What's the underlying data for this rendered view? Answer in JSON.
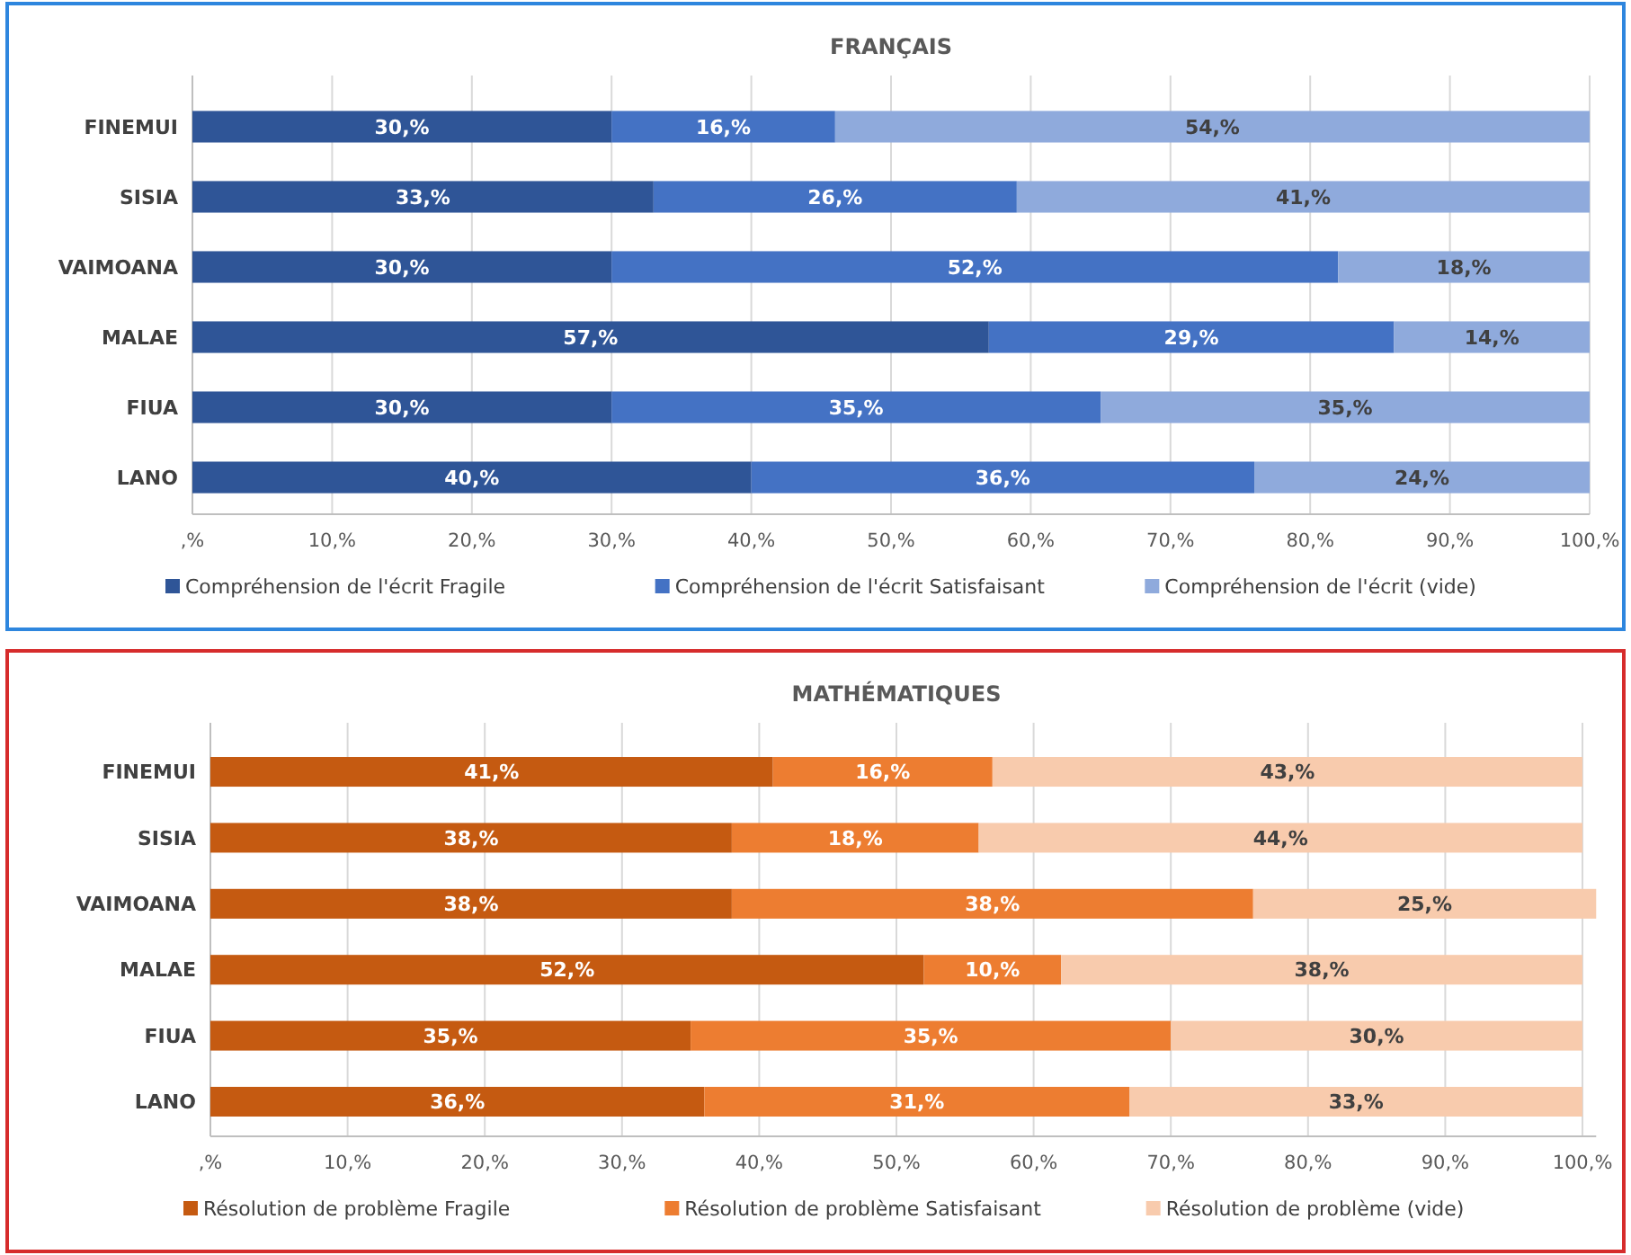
{
  "chart_data": [
    {
      "type": "bar",
      "orientation": "horizontal",
      "stacked": true,
      "title": "FRANÇAIS",
      "categories": [
        "FINEMUI",
        "SISIA",
        "VAIMOANA",
        "MALAE",
        "FIUA",
        "LANO"
      ],
      "series": [
        {
          "name": "Compréhension de l'écrit Fragile",
          "color": "#2f5597",
          "values": [
            30,
            33,
            30,
            57,
            30,
            40
          ],
          "value_labels": [
            "30,%",
            "33,%",
            "30,%",
            "57,%",
            "30,%",
            "40,%"
          ]
        },
        {
          "name": "Compréhension de l'écrit Satisfaisant",
          "color": "#4472c4",
          "values": [
            16,
            26,
            52,
            29,
            35,
            36
          ],
          "value_labels": [
            "16,%",
            "26,%",
            "52,%",
            "29,%",
            "35,%",
            "36,%"
          ]
        },
        {
          "name": "Compréhension de l'écrit (vide)",
          "color": "#8faadc",
          "values": [
            54,
            41,
            18,
            14,
            35,
            24
          ],
          "value_labels": [
            "54,%",
            "41,%",
            "18,%",
            "14,%",
            "35,%",
            "24,%"
          ]
        }
      ],
      "xlim": [
        0,
        100
      ],
      "xticks": [
        {
          "value": 0,
          "label": ",%"
        },
        {
          "value": 10,
          "label": "10,%"
        },
        {
          "value": 20,
          "label": "20,%"
        },
        {
          "value": 30,
          "label": "30,%"
        },
        {
          "value": 40,
          "label": "40,%"
        },
        {
          "value": 50,
          "label": "50,%"
        },
        {
          "value": 60,
          "label": "60,%"
        },
        {
          "value": 70,
          "label": "70,%"
        },
        {
          "value": 80,
          "label": "80,%"
        },
        {
          "value": 90,
          "label": "90,%"
        },
        {
          "value": 100,
          "label": "100,%"
        }
      ],
      "grid": "x",
      "legend": "bottom"
    },
    {
      "type": "bar",
      "orientation": "horizontal",
      "stacked": true,
      "title": "MATHÉMATIQUES",
      "categories": [
        "FINEMUI",
        "SISIA",
        "VAIMOANA",
        "MALAE",
        "FIUA",
        "LANO"
      ],
      "series": [
        {
          "name": "Résolution de problème Fragile",
          "color": "#c55a11",
          "values": [
            41,
            38,
            38,
            52,
            35,
            36
          ],
          "value_labels": [
            "41,%",
            "38,%",
            "38,%",
            "52,%",
            "35,%",
            "36,%"
          ]
        },
        {
          "name": "Résolution de problème Satisfaisant",
          "color": "#ed7d31",
          "values": [
            16,
            18,
            38,
            10,
            35,
            31
          ],
          "value_labels": [
            "16,%",
            "18,%",
            "38,%",
            "10,%",
            "35,%",
            "31,%"
          ]
        },
        {
          "name": "Résolution de problème (vide)",
          "color": "#f8cbad",
          "values": [
            43,
            44,
            25,
            38,
            30,
            33
          ],
          "value_labels": [
            "43,%",
            "44,%",
            "25,%",
            "38,%",
            "30,%",
            "33,%"
          ]
        }
      ],
      "xlim": [
        0,
        101
      ],
      "xticks": [
        {
          "value": 0,
          "label": ",%"
        },
        {
          "value": 10,
          "label": "10,%"
        },
        {
          "value": 20,
          "label": "20,%"
        },
        {
          "value": 30,
          "label": "30,%"
        },
        {
          "value": 40,
          "label": "40,%"
        },
        {
          "value": 50,
          "label": "50,%"
        },
        {
          "value": 60,
          "label": "60,%"
        },
        {
          "value": 70,
          "label": "70,%"
        },
        {
          "value": 80,
          "label": "80,%"
        },
        {
          "value": 90,
          "label": "90,%"
        },
        {
          "value": 100,
          "label": "100,%"
        }
      ],
      "grid": "x",
      "legend": "bottom"
    }
  ]
}
